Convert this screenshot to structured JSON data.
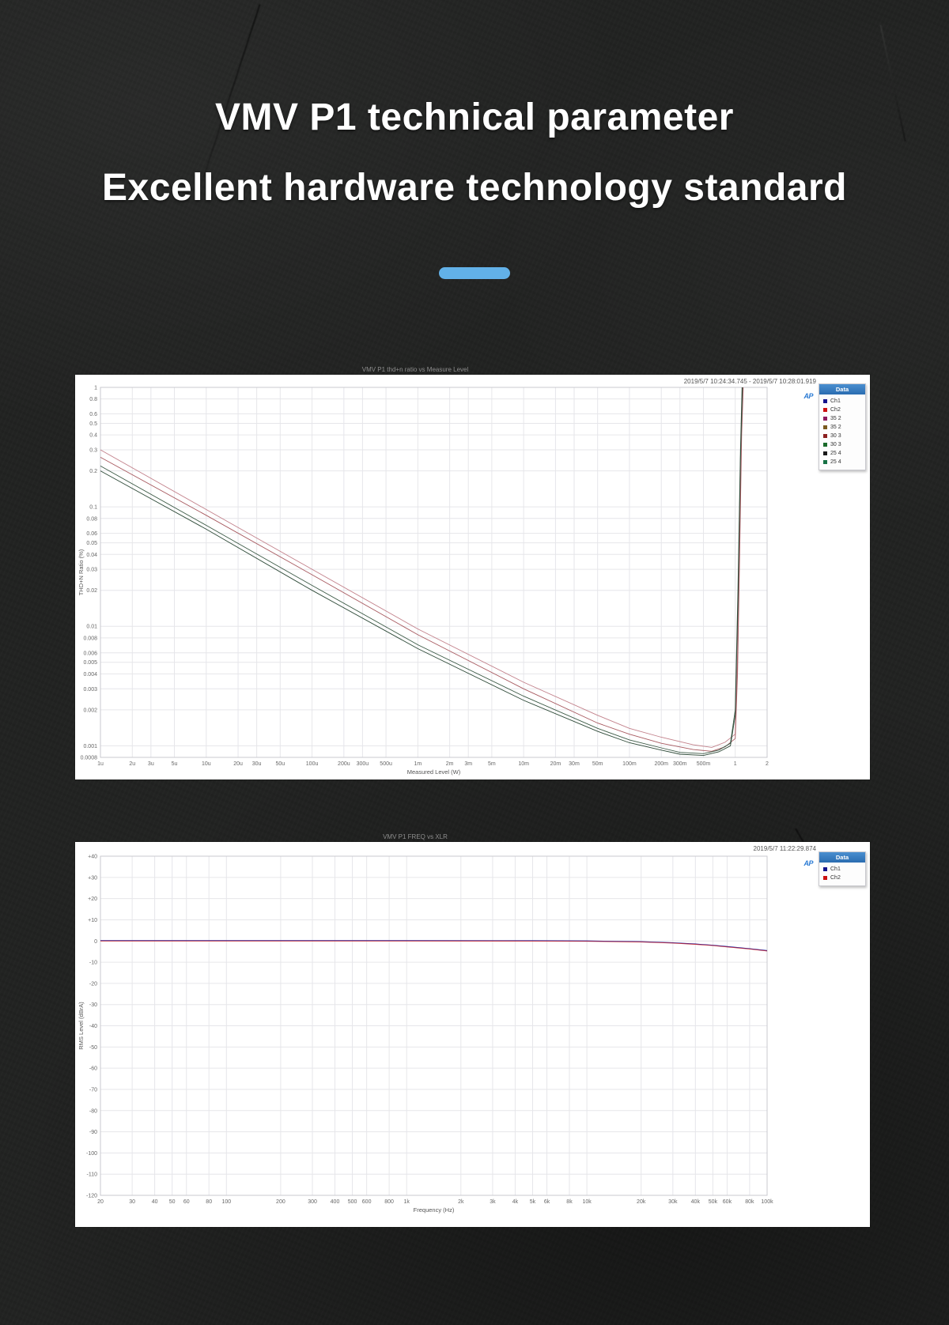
{
  "header": {
    "title_line1": "VMV P1 technical parameter",
    "title_line2": "Excellent hardware technology standard",
    "accent_color": "#62b1e8",
    "ap_logo": "AP"
  },
  "chart_data": [
    {
      "type": "line",
      "title": "VMV P1 thd+n ratio vs Measure Level",
      "timestamp": "2019/5/7 10:24:34.745 - 2019/5/7 10:28:01.919",
      "xlabel": "Measured Level (W)",
      "ylabel": "THD+N Ratio (%)",
      "x_scale": "log",
      "y_scale": "log",
      "xlim": [
        1e-06,
        2
      ],
      "ylim": [
        0.0008,
        1
      ],
      "grid": true,
      "legend_position": "right",
      "x_ticks": [
        "1u",
        "2u",
        "3u",
        "5u",
        "10u",
        "20u",
        "30u",
        "50u",
        "100u",
        "200u",
        "300u",
        "500u",
        "1m",
        "2m",
        "3m",
        "5m",
        "10m",
        "20m",
        "30m",
        "50m",
        "100m",
        "200m",
        "300m",
        "500m",
        "1",
        "2"
      ],
      "x_tick_values": [
        1e-06,
        2e-06,
        3e-06,
        5e-06,
        1e-05,
        2e-05,
        3e-05,
        5e-05,
        0.0001,
        0.0002,
        0.0003,
        0.0005,
        0.001,
        0.002,
        0.003,
        0.005,
        0.01,
        0.02,
        0.03,
        0.05,
        0.1,
        0.2,
        0.3,
        0.5,
        1,
        2
      ],
      "y_ticks": [
        "1",
        "0.8",
        "0.6",
        "0.5",
        "0.4",
        "0.3",
        "0.2",
        "0.1",
        "0.08",
        "0.06",
        "0.05",
        "0.04",
        "0.03",
        "0.02",
        "0.01",
        "0.008",
        "0.006",
        "0.005",
        "0.004",
        "0.003",
        "0.002",
        "0.001",
        "0.0008"
      ],
      "y_tick_values": [
        1,
        0.8,
        0.6,
        0.5,
        0.4,
        0.3,
        0.2,
        0.1,
        0.08,
        0.06,
        0.05,
        0.04,
        0.03,
        0.02,
        0.01,
        0.008,
        0.006,
        0.005,
        0.004,
        0.003,
        0.002,
        0.001,
        0.0008
      ],
      "legend": {
        "header": "Data",
        "items": [
          {
            "label": "Ch1",
            "color": "#14148c"
          },
          {
            "label": "Ch2",
            "color": "#cc1111"
          },
          {
            "label": "35 2",
            "color": "#8c1a5e"
          },
          {
            "label": "35 2",
            "color": "#7a5a1e"
          },
          {
            "label": "30 3",
            "color": "#8c2020"
          },
          {
            "label": "30 3",
            "color": "#1a6a2a"
          },
          {
            "label": "25 4",
            "color": "#1a1a1a"
          },
          {
            "label": "25 4",
            "color": "#177245"
          }
        ]
      },
      "series": [
        {
          "name": "Ch2",
          "color": "#c2808a",
          "points": [
            [
              1e-06,
              0.3
            ],
            [
              1e-05,
              0.095
            ],
            [
              0.0001,
              0.03
            ],
            [
              0.001,
              0.0095
            ],
            [
              0.01,
              0.0034
            ],
            [
              0.05,
              0.0018
            ],
            [
              0.1,
              0.0014
            ],
            [
              0.2,
              0.00118
            ],
            [
              0.4,
              0.00102
            ],
            [
              0.6,
              0.00097
            ],
            [
              0.8,
              0.00107
            ],
            [
              1.0,
              0.00125
            ],
            [
              1.05,
              0.006
            ],
            [
              1.1,
              0.06
            ],
            [
              1.15,
              0.6
            ],
            [
              1.18,
              1.1
            ]
          ]
        },
        {
          "name": "30 3",
          "color": "#a85a60",
          "points": [
            [
              1e-06,
              0.26
            ],
            [
              1e-05,
              0.085
            ],
            [
              0.0001,
              0.027
            ],
            [
              0.001,
              0.0085
            ],
            [
              0.01,
              0.003
            ],
            [
              0.05,
              0.00155
            ],
            [
              0.1,
              0.00125
            ],
            [
              0.2,
              0.00105
            ],
            [
              0.4,
              0.00093
            ],
            [
              0.6,
              0.0009
            ],
            [
              0.8,
              0.00098
            ],
            [
              1.0,
              0.00115
            ],
            [
              1.05,
              0.004
            ],
            [
              1.1,
              0.04
            ],
            [
              1.15,
              0.4
            ],
            [
              1.19,
              1.1
            ]
          ]
        },
        {
          "name": "Ch1",
          "color": "#3c5a46",
          "points": [
            [
              1e-06,
              0.22
            ],
            [
              1e-05,
              0.07
            ],
            [
              0.0001,
              0.022
            ],
            [
              0.001,
              0.007
            ],
            [
              0.01,
              0.0026
            ],
            [
              0.05,
              0.0014
            ],
            [
              0.1,
              0.00112
            ],
            [
              0.2,
              0.00096
            ],
            [
              0.3,
              0.00088
            ],
            [
              0.5,
              0.00086
            ],
            [
              0.7,
              0.00092
            ],
            [
              0.9,
              0.00105
            ],
            [
              1.0,
              0.002
            ],
            [
              1.06,
              0.02
            ],
            [
              1.12,
              0.3
            ],
            [
              1.16,
              1.1
            ]
          ]
        },
        {
          "name": "25 4",
          "color": "#2e4a38",
          "points": [
            [
              1e-06,
              0.2
            ],
            [
              1e-05,
              0.065
            ],
            [
              0.0001,
              0.02
            ],
            [
              0.001,
              0.0065
            ],
            [
              0.01,
              0.0024
            ],
            [
              0.05,
              0.00132
            ],
            [
              0.1,
              0.00106
            ],
            [
              0.2,
              0.00092
            ],
            [
              0.3,
              0.00085
            ],
            [
              0.5,
              0.00083
            ],
            [
              0.7,
              0.00089
            ],
            [
              0.9,
              0.001
            ],
            [
              1.0,
              0.0018
            ],
            [
              1.06,
              0.015
            ],
            [
              1.12,
              0.25
            ],
            [
              1.17,
              1.1
            ]
          ]
        }
      ]
    },
    {
      "type": "line",
      "title": "VMV P1 FREQ vs XLR",
      "timestamp": "2019/5/7 11:22:29.874",
      "xlabel": "Frequency (Hz)",
      "ylabel": "RMS Level (dBrA)",
      "x_scale": "log",
      "y_scale": "linear",
      "xlim": [
        20,
        100000
      ],
      "ylim": [
        -120,
        40
      ],
      "grid": true,
      "legend_position": "right",
      "x_ticks": [
        "20",
        "30",
        "40",
        "50",
        "60",
        "80",
        "100",
        "200",
        "300",
        "400",
        "500",
        "600",
        "800",
        "1k",
        "2k",
        "3k",
        "4k",
        "5k",
        "6k",
        "8k",
        "10k",
        "20k",
        "30k",
        "40k",
        "50k",
        "60k",
        "80k",
        "100k"
      ],
      "x_tick_values": [
        20,
        30,
        40,
        50,
        60,
        80,
        100,
        200,
        300,
        400,
        500,
        600,
        800,
        1000,
        2000,
        3000,
        4000,
        5000,
        6000,
        8000,
        10000,
        20000,
        30000,
        40000,
        50000,
        60000,
        80000,
        100000
      ],
      "y_ticks": [
        "+40",
        "+30",
        "+20",
        "+10",
        "0",
        "-10",
        "-20",
        "-30",
        "-40",
        "-50",
        "-60",
        "-70",
        "-80",
        "-90",
        "-100",
        "-110",
        "-120"
      ],
      "y_tick_values": [
        40,
        30,
        20,
        10,
        0,
        -10,
        -20,
        -30,
        -40,
        -50,
        -60,
        -70,
        -80,
        -90,
        -100,
        -110,
        -120
      ],
      "legend": {
        "header": "Data",
        "items": [
          {
            "label": "Ch1",
            "color": "#14148c"
          },
          {
            "label": "Ch2",
            "color": "#cc1111"
          }
        ]
      },
      "series": [
        {
          "name": "Ch1",
          "color": "#16169c",
          "points": [
            [
              20,
              0.2
            ],
            [
              100,
              0.2
            ],
            [
              1000,
              0.2
            ],
            [
              5000,
              0.15
            ],
            [
              10000,
              0.05
            ],
            [
              20000,
              -0.3
            ],
            [
              30000,
              -0.8
            ],
            [
              40000,
              -1.4
            ],
            [
              50000,
              -2.0
            ],
            [
              60000,
              -2.6
            ],
            [
              80000,
              -3.6
            ],
            [
              100000,
              -4.5
            ]
          ]
        },
        {
          "name": "Ch2",
          "color": "#c03040",
          "points": [
            [
              20,
              0
            ],
            [
              100,
              0
            ],
            [
              1000,
              0
            ],
            [
              5000,
              -0.05
            ],
            [
              10000,
              -0.15
            ],
            [
              20000,
              -0.5
            ],
            [
              30000,
              -1.0
            ],
            [
              40000,
              -1.6
            ],
            [
              50000,
              -2.2
            ],
            [
              60000,
              -2.8
            ],
            [
              80000,
              -3.8
            ],
            [
              100000,
              -4.7
            ]
          ]
        }
      ]
    }
  ]
}
